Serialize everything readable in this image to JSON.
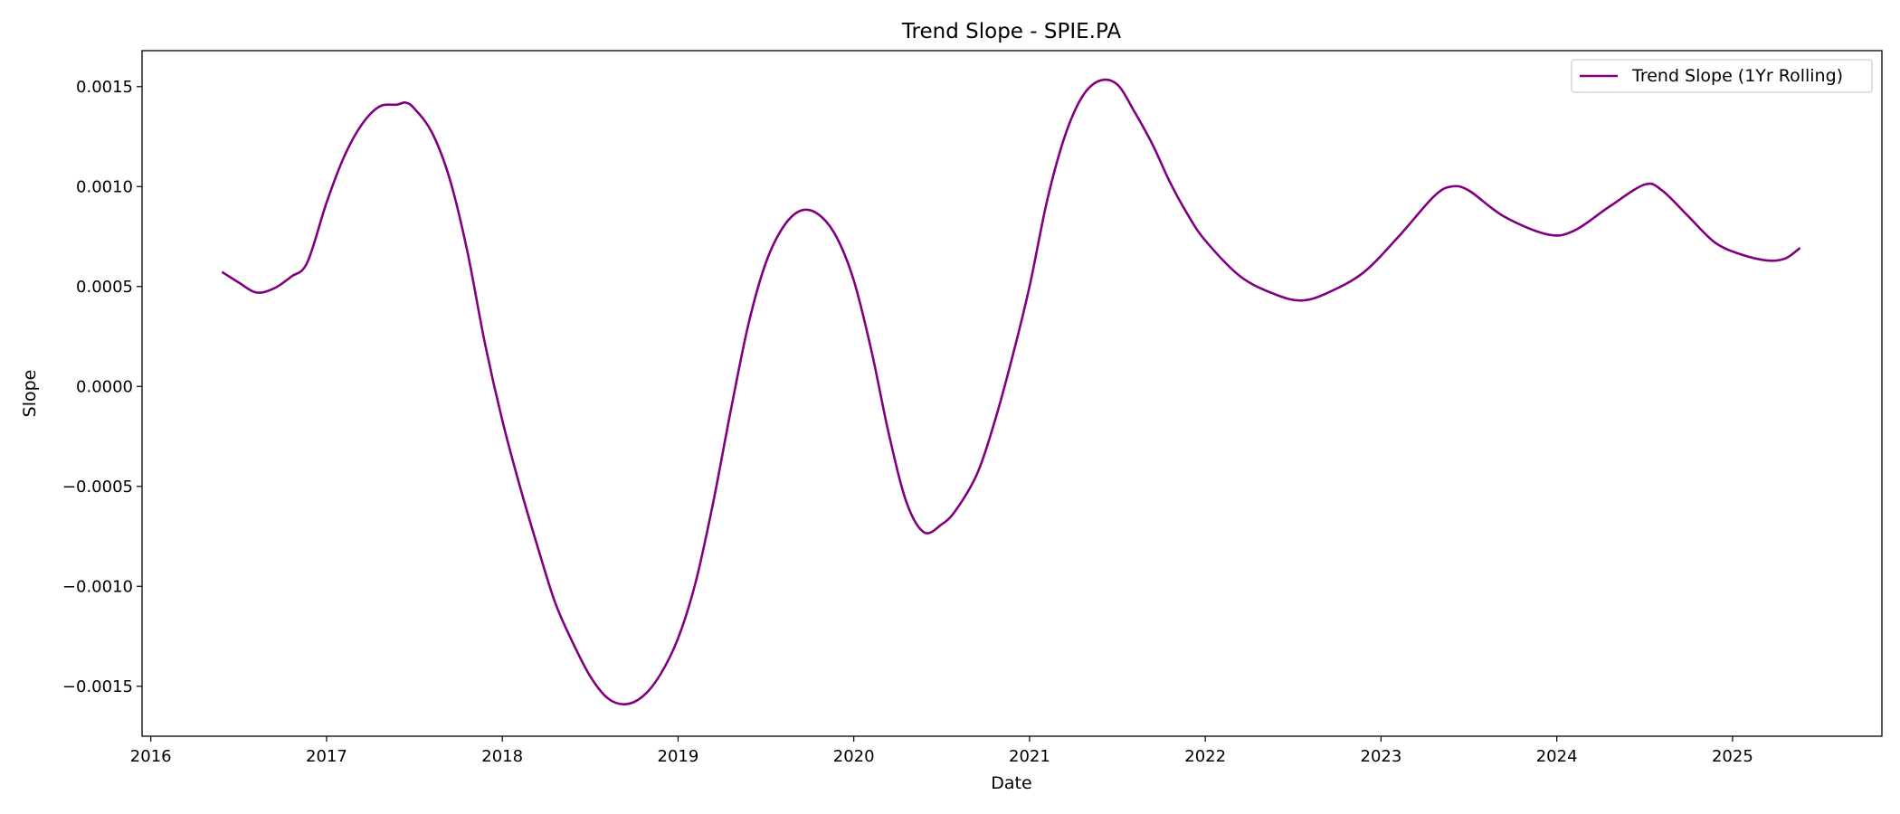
{
  "chart_data": {
    "type": "line",
    "title": "Trend Slope - SPIE.PA",
    "xlabel": "Date",
    "ylabel": "Slope",
    "xlim": [
      2015.95,
      2025.85
    ],
    "ylim": [
      -0.00175,
      0.00168
    ],
    "x_ticks": [
      2016,
      2017,
      2018,
      2019,
      2020,
      2021,
      2022,
      2023,
      2024,
      2025
    ],
    "x_tick_labels": [
      "2016",
      "2017",
      "2018",
      "2019",
      "2020",
      "2021",
      "2022",
      "2023",
      "2024",
      "2025"
    ],
    "y_ticks": [
      -0.0015,
      -0.001,
      -0.0005,
      0.0,
      0.0005,
      0.001,
      0.0015
    ],
    "y_tick_labels": [
      "−0.0015",
      "−0.0010",
      "−0.0005",
      "0.0000",
      "0.0005",
      "0.0010",
      "0.0015"
    ],
    "grid": false,
    "legend_position": "upper right",
    "series": [
      {
        "name": "Trend Slope (1Yr Rolling)",
        "color": "#800080",
        "x": [
          2016.41,
          2016.5,
          2016.6,
          2016.7,
          2016.8,
          2016.89,
          2017.0,
          2017.1,
          2017.2,
          2017.3,
          2017.4,
          2017.45,
          2017.5,
          2017.6,
          2017.7,
          2017.8,
          2017.9,
          2018.0,
          2018.1,
          2018.2,
          2018.3,
          2018.4,
          2018.5,
          2018.6,
          2018.7,
          2018.8,
          2018.9,
          2019.0,
          2019.1,
          2019.2,
          2019.3,
          2019.4,
          2019.5,
          2019.6,
          2019.7,
          2019.8,
          2019.9,
          2020.0,
          2020.1,
          2020.2,
          2020.3,
          2020.4,
          2020.5,
          2020.58,
          2020.7,
          2020.8,
          2020.9,
          2021.0,
          2021.1,
          2021.2,
          2021.3,
          2021.4,
          2021.5,
          2021.6,
          2021.7,
          2021.8,
          2021.9,
          2022.0,
          2022.2,
          2022.4,
          2022.55,
          2022.7,
          2022.9,
          2023.1,
          2023.3,
          2023.4,
          2023.5,
          2023.7,
          2023.95,
          2024.1,
          2024.3,
          2024.5,
          2024.6,
          2024.75,
          2024.9,
          2025.05,
          2025.2,
          2025.3,
          2025.38
        ],
        "y": [
          0.00057,
          0.00052,
          0.00047,
          0.00049,
          0.00055,
          0.00062,
          0.00092,
          0.00115,
          0.00131,
          0.0014,
          0.00141,
          0.00142,
          0.00139,
          0.00127,
          0.00104,
          0.00068,
          0.00022,
          -0.00017,
          -0.0005,
          -0.0008,
          -0.00108,
          -0.00128,
          -0.00145,
          -0.00156,
          -0.00159,
          -0.00155,
          -0.00144,
          -0.00126,
          -0.00098,
          -0.00058,
          -0.00012,
          0.00031,
          0.00062,
          0.0008,
          0.00088,
          0.00086,
          0.00075,
          0.00053,
          0.00018,
          -0.00024,
          -0.00058,
          -0.00073,
          -0.00069,
          -0.00062,
          -0.00044,
          -0.00018,
          0.00014,
          0.0005,
          0.00093,
          0.00125,
          0.00145,
          0.00153,
          0.00151,
          0.00137,
          0.00121,
          0.00102,
          0.00086,
          0.00073,
          0.00055,
          0.00046,
          0.00043,
          0.00047,
          0.00057,
          0.00075,
          0.00095,
          0.001,
          0.00098,
          0.00085,
          0.00076,
          0.00078,
          0.0009,
          0.00101,
          0.00098,
          0.00085,
          0.00072,
          0.00066,
          0.00063,
          0.00064,
          0.00069
        ]
      }
    ]
  }
}
